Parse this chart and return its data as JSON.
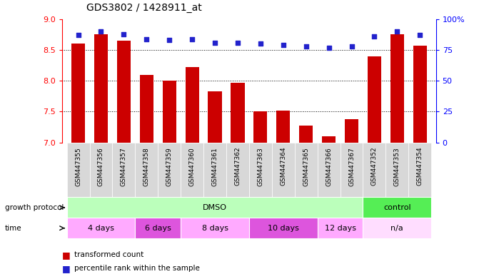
{
  "title": "GDS3802 / 1428911_at",
  "samples": [
    "GSM447355",
    "GSM447356",
    "GSM447357",
    "GSM447358",
    "GSM447359",
    "GSM447360",
    "GSM447361",
    "GSM447362",
    "GSM447363",
    "GSM447364",
    "GSM447365",
    "GSM447366",
    "GSM447367",
    "GSM447352",
    "GSM447353",
    "GSM447354"
  ],
  "transformed_count": [
    8.6,
    8.75,
    8.65,
    8.1,
    8.0,
    8.22,
    7.83,
    7.97,
    7.5,
    7.52,
    7.27,
    7.1,
    7.38,
    8.4,
    8.75,
    8.57
  ],
  "percentile_rank": [
    87,
    90,
    88,
    84,
    83,
    84,
    81,
    81,
    80,
    79,
    78,
    77,
    78,
    86,
    90,
    87
  ],
  "ylim_left": [
    7,
    9
  ],
  "ylim_right": [
    0,
    100
  ],
  "yticks_left": [
    7.0,
    7.5,
    8.0,
    8.5,
    9.0
  ],
  "yticks_right": [
    0,
    25,
    50,
    75,
    100
  ],
  "bar_color": "#cc0000",
  "dot_color": "#2222cc",
  "growth_protocol_groups": [
    {
      "label": "DMSO",
      "start": 0,
      "end": 13,
      "color": "#bbffbb"
    },
    {
      "label": "control",
      "start": 13,
      "end": 16,
      "color": "#55ee55"
    }
  ],
  "time_groups": [
    {
      "label": "4 days",
      "start": 0,
      "end": 3,
      "color": "#ffaaff"
    },
    {
      "label": "6 days",
      "start": 3,
      "end": 5,
      "color": "#dd55dd"
    },
    {
      "label": "8 days",
      "start": 5,
      "end": 8,
      "color": "#ffaaff"
    },
    {
      "label": "10 days",
      "start": 8,
      "end": 11,
      "color": "#dd55dd"
    },
    {
      "label": "12 days",
      "start": 11,
      "end": 13,
      "color": "#ffaaff"
    },
    {
      "label": "n/a",
      "start": 13,
      "end": 16,
      "color": "#ffddff"
    }
  ],
  "legend_items": [
    {
      "label": "transformed count",
      "color": "#cc0000"
    },
    {
      "label": "percentile rank within the sample",
      "color": "#2222cc"
    }
  ],
  "growth_protocol_label": "growth protocol",
  "time_label": "time",
  "xtick_bg_color": "#d8d8d8",
  "grid_color": "#000000",
  "grid_linestyle": ":",
  "grid_linewidth": 0.7
}
